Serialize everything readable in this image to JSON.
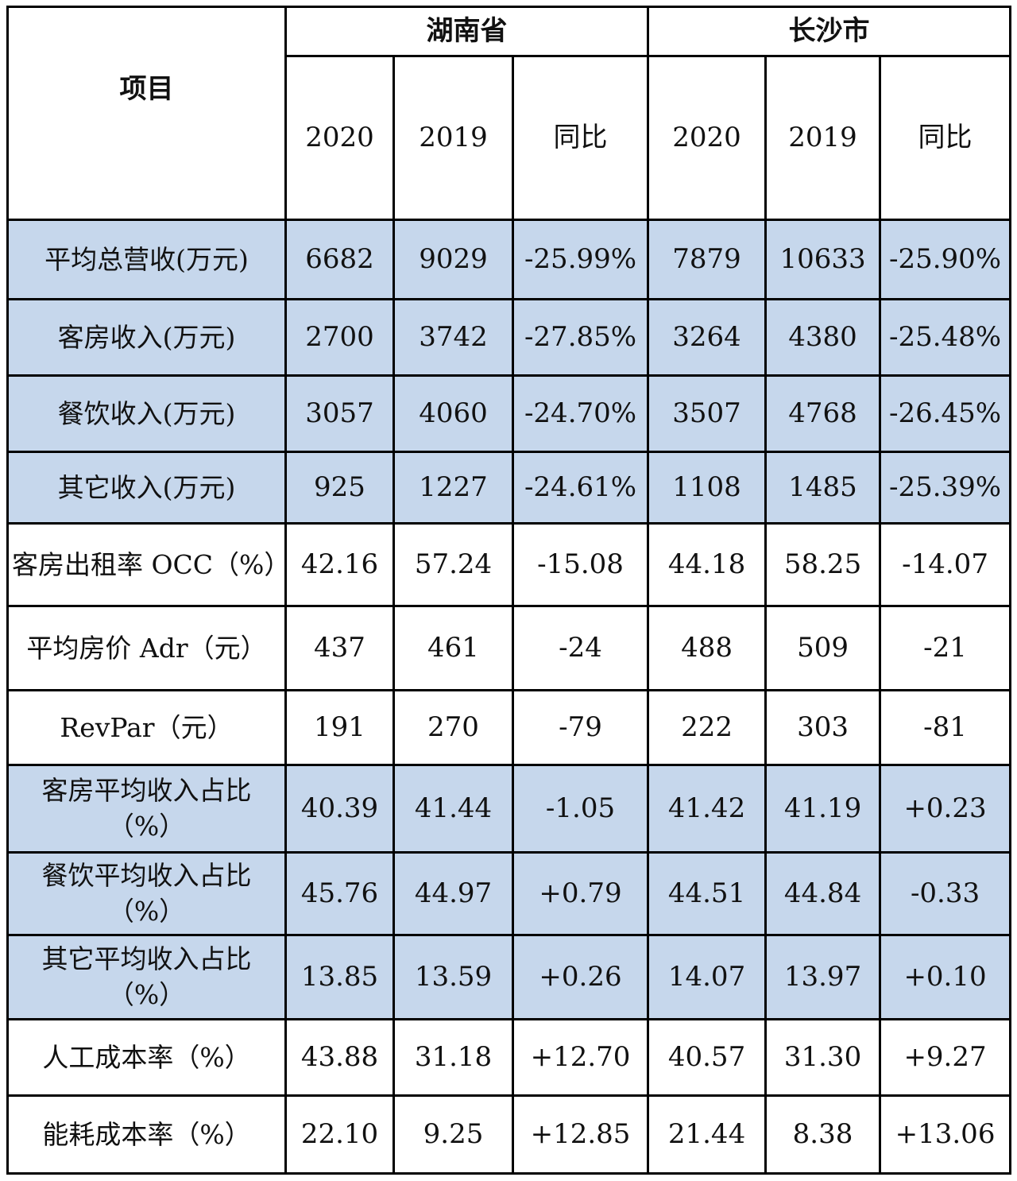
{
  "header": {
    "item_label": "项目",
    "regions": [
      "湖南省",
      "长沙市"
    ],
    "subheaders": [
      "2020",
      "2019",
      "同比",
      "2020",
      "2019",
      "同比"
    ]
  },
  "rows": [
    {
      "label": "平均总营收(万元)",
      "values": [
        "6682",
        "9029",
        "-25.99%",
        "7879",
        "10633",
        "-25.90%"
      ],
      "shade": "blue"
    },
    {
      "label": "客房收入(万元)",
      "values": [
        "2700",
        "3742",
        "-27.85%",
        "3264",
        "4380",
        "-25.48%"
      ],
      "shade": "blue"
    },
    {
      "label": "餐饮收入(万元)",
      "values": [
        "3057",
        "4060",
        "-24.70%",
        "3507",
        "4768",
        "-26.45%"
      ],
      "shade": "blue"
    },
    {
      "label": "其它收入(万元)",
      "values": [
        "925",
        "1227",
        "-24.61%",
        "1108",
        "1485",
        "-25.39%"
      ],
      "shade": "blue"
    },
    {
      "label": "客房出租率 OCC（%）",
      "values": [
        "42.16",
        "57.24",
        "-15.08",
        "44.18",
        "58.25",
        "-14.07"
      ],
      "shade": "white"
    },
    {
      "label": "平均房价 Adr（元）",
      "values": [
        "437",
        "461",
        "-24",
        "488",
        "509",
        "-21"
      ],
      "shade": "white"
    },
    {
      "label": "RevPar（元）",
      "values": [
        "191",
        "270",
        "-79",
        "222",
        "303",
        "-81"
      ],
      "shade": "white"
    },
    {
      "label": "客房平均收入占比（%）",
      "values": [
        "40.39",
        "41.44",
        "-1.05",
        "41.42",
        "41.19",
        "+0.23"
      ],
      "shade": "blue"
    },
    {
      "label": "餐饮平均收入占比（%）",
      "values": [
        "45.76",
        "44.97",
        "+0.79",
        "44.51",
        "44.84",
        "-0.33"
      ],
      "shade": "blue"
    },
    {
      "label": "其它平均收入占比（%）",
      "values": [
        "13.85",
        "13.59",
        "+0.26",
        "14.07",
        "13.97",
        "+0.10"
      ],
      "shade": "blue"
    },
    {
      "label": "人工成本率（%）",
      "values": [
        "43.88",
        "31.18",
        "+12.70",
        "40.57",
        "31.30",
        "+9.27"
      ],
      "shade": "white"
    },
    {
      "label": "能耗成本率（%）",
      "values": [
        "22.10",
        "9.25",
        "+12.85",
        "21.44",
        "8.38",
        "+13.06"
      ],
      "shade": "white"
    }
  ],
  "colors": {
    "shade_blue": "#c6d7ec",
    "shade_white": "#ffffff",
    "border": "#000000"
  }
}
